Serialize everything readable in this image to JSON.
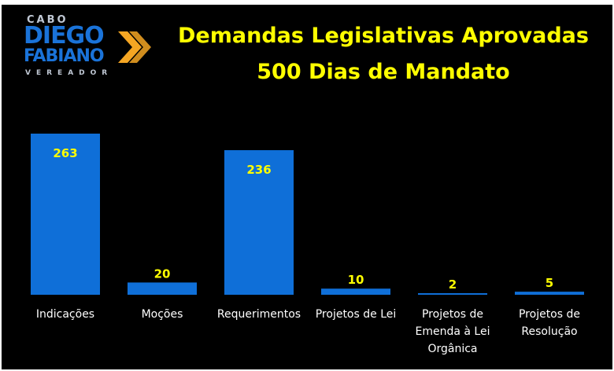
{
  "logo": {
    "top_text": "CABO",
    "name_line_1": "DIEGO",
    "name_line_2": "FABIANO",
    "bottom_text": "VEREADOR",
    "blue": "#1a73d9",
    "accent": "#f5a623"
  },
  "chart_data": {
    "type": "bar",
    "title": [
      "Demandas Legislativas Aprovadas",
      "500 Dias de Mandato"
    ],
    "categories": [
      "Indicações",
      "Moções",
      "Requerimentos",
      "Projetos de Lei",
      "Projetos de Emenda à Lei Orgânica",
      "Projetos de Resolução"
    ],
    "category_lines": [
      [
        "Indicações"
      ],
      [
        "Moções"
      ],
      [
        "Requerimentos"
      ],
      [
        "Projetos de Lei"
      ],
      [
        "Projetos de",
        "Emenda à Lei",
        "Orgânica"
      ],
      [
        "Projetos de",
        "Resolução"
      ]
    ],
    "values": [
      263,
      20,
      236,
      10,
      2,
      5
    ],
    "xlabel": "",
    "ylabel": "",
    "ylim": [
      0,
      263
    ],
    "grid": false,
    "legend": "none",
    "colors": {
      "background": "#000000",
      "bar": "#0f6fd8",
      "title": "#ffff00",
      "data_label": "#ffff00",
      "tick_label": "#ffffff"
    }
  }
}
